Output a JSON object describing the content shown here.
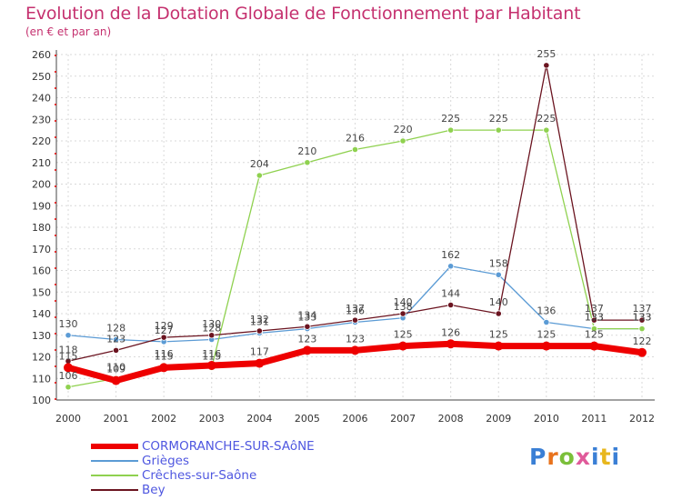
{
  "title": "Evolution de la Dotation Globale de Fonctionnement par Habitant",
  "subtitle": "(en € et par an)",
  "logo": {
    "text": "Proxiti",
    "colors": [
      "#3a7fd5",
      "#e8731d",
      "#7bbf3a",
      "#e05a9a",
      "#3a7fd5",
      "#e8b71d",
      "#3a7fd5"
    ]
  },
  "chart_data": {
    "type": "line",
    "x": [
      "2000",
      "2001",
      "2002",
      "2003",
      "2004",
      "2005",
      "2006",
      "2007",
      "2008",
      "2009",
      "2010",
      "2011",
      "2012"
    ],
    "ylim": [
      100,
      260
    ],
    "yticks": [
      100,
      110,
      120,
      130,
      140,
      150,
      160,
      170,
      180,
      190,
      200,
      210,
      220,
      230,
      240,
      250,
      260
    ],
    "grid": true,
    "legend_position": "bottom-left",
    "series": [
      {
        "name": "CORMORANCHE-SUR-SAôNE",
        "color": "#ee0000",
        "width": 7,
        "values": [
          115,
          109,
          115,
          116,
          117,
          123,
          123,
          125,
          126,
          125,
          125,
          125,
          122
        ]
      },
      {
        "name": "Grièges",
        "color": "#5b9bd5",
        "width": 1.3,
        "values": [
          130,
          128,
          127,
          128,
          131,
          133,
          136,
          138,
          162,
          158,
          136,
          133,
          133
        ]
      },
      {
        "name": "Crêches-sur-Saône",
        "color": "#8fd14f",
        "width": 1.3,
        "values": [
          106,
          110,
          116,
          115,
          204,
          210,
          216,
          220,
          225,
          225,
          225,
          133,
          133
        ]
      },
      {
        "name": "Bey",
        "color": "#6b1420",
        "width": 1.3,
        "values": [
          118,
          123,
          129,
          130,
          132,
          134,
          137,
          140,
          144,
          140,
          255,
          137,
          137
        ]
      }
    ]
  }
}
